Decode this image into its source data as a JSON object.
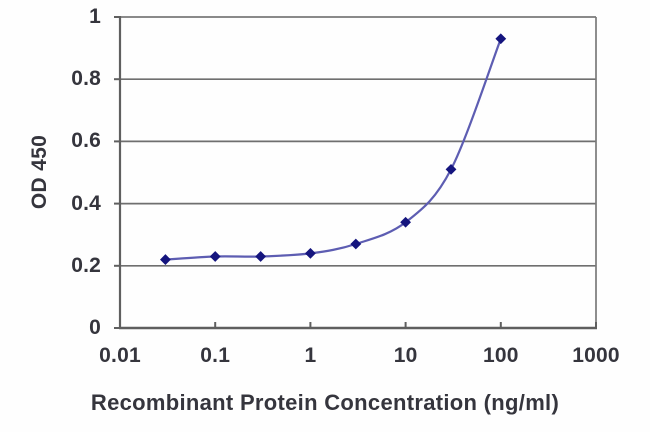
{
  "chart_data": {
    "type": "line",
    "title": "",
    "xlabel": "Recombinant Protein Concentration (ng/ml)",
    "ylabel": "OD 450",
    "x_scale": "log",
    "x": [
      0.03,
      0.1,
      0.3,
      1,
      3,
      10,
      30,
      100
    ],
    "series": [
      {
        "name": "OD 450",
        "values": [
          0.22,
          0.23,
          0.23,
          0.24,
          0.27,
          0.34,
          0.51,
          0.93
        ]
      }
    ],
    "xlim": [
      0.01,
      1000
    ],
    "ylim": [
      0,
      1
    ],
    "x_tick_values": [
      0.01,
      0.1,
      1,
      10,
      100,
      1000
    ],
    "x_tick_labels": [
      "0.01",
      "0.1",
      "1",
      "10",
      "100",
      "1000"
    ],
    "y_tick_values": [
      0,
      0.2,
      0.4,
      0.6,
      0.8,
      1
    ],
    "y_tick_labels": [
      "0",
      "0.2",
      "0.4",
      "0.6",
      "0.8",
      "1"
    ],
    "grid": "horizontal",
    "legend": "none",
    "marker": "diamond",
    "line_smoothing": true,
    "colors": {
      "line": "#5d5db2",
      "marker": "#15157e",
      "grid": "#6f6f6f",
      "axis": "#5f5f5f",
      "border": "#7a7a7a",
      "text": "#35353d",
      "background": "#fefefe"
    }
  }
}
